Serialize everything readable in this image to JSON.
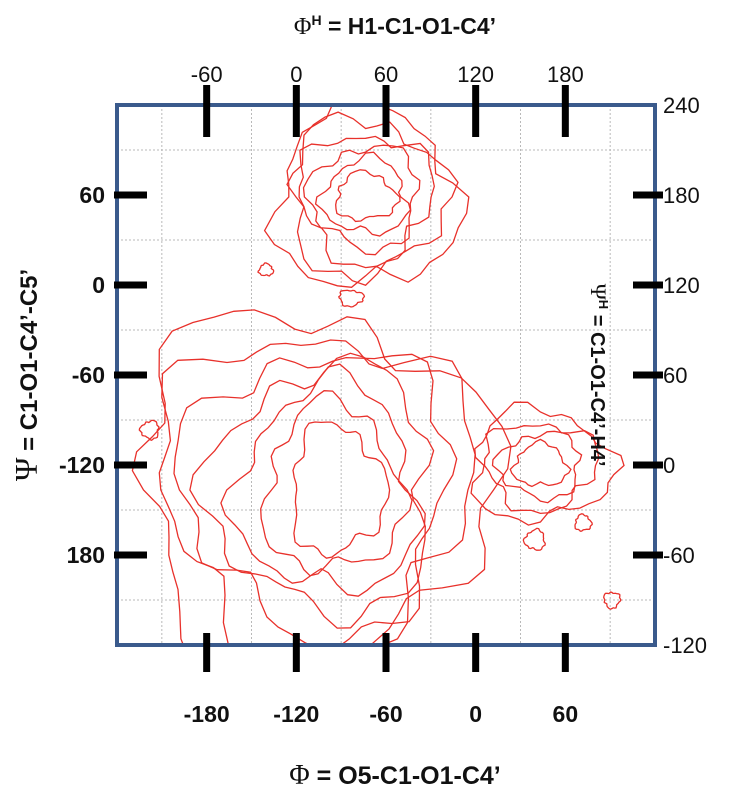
{
  "chart_data": {
    "type": "contour",
    "bottom_axis": {
      "symbol": "Φ",
      "label": " = O5-C1-O1-C4’",
      "range": [
        -240,
        120
      ],
      "ticks": [
        -180,
        -120,
        -60,
        0,
        60
      ],
      "tick_labels": [
        "-180",
        "-120",
        "-60",
        "0",
        "60"
      ]
    },
    "top_axis": {
      "symbol": "Φ",
      "superscript": "H",
      "label": " = H1-C1-O1-C4’",
      "range": [
        -120,
        240
      ],
      "ticks": [
        -60,
        0,
        60,
        120,
        180
      ],
      "tick_labels": [
        "-60",
        "0",
        "60",
        "120",
        "180"
      ]
    },
    "left_axis": {
      "symbol": "Ψ",
      "label": " = C1-O1-C4’-C5’",
      "range": [
        -240,
        120
      ],
      "ticks": [
        60,
        0,
        -60,
        -120,
        180
      ],
      "tick_labels": [
        "60",
        "0",
        "-60",
        "-120",
        "180"
      ]
    },
    "right_axis": {
      "symbol": "Ψ",
      "superscript": "H",
      "label": " = C1-O1-C4’-H4’",
      "range": [
        -120,
        240
      ],
      "ticks": [
        240,
        180,
        120,
        60,
        0,
        -60,
        -120
      ],
      "tick_labels": [
        "240",
        "180",
        "120",
        "60",
        "0",
        "-60",
        "-120"
      ]
    },
    "grid": true,
    "contour_color": "#e8312b",
    "frame_color": "#3a5a8c",
    "regions": [
      {
        "center_phi": -75,
        "center_psi": 62,
        "levels": 6
      },
      {
        "center_phi": -90,
        "center_psi": -130,
        "levels": 7
      },
      {
        "center_phi": 50,
        "center_psi": -117,
        "levels": 4
      }
    ]
  }
}
